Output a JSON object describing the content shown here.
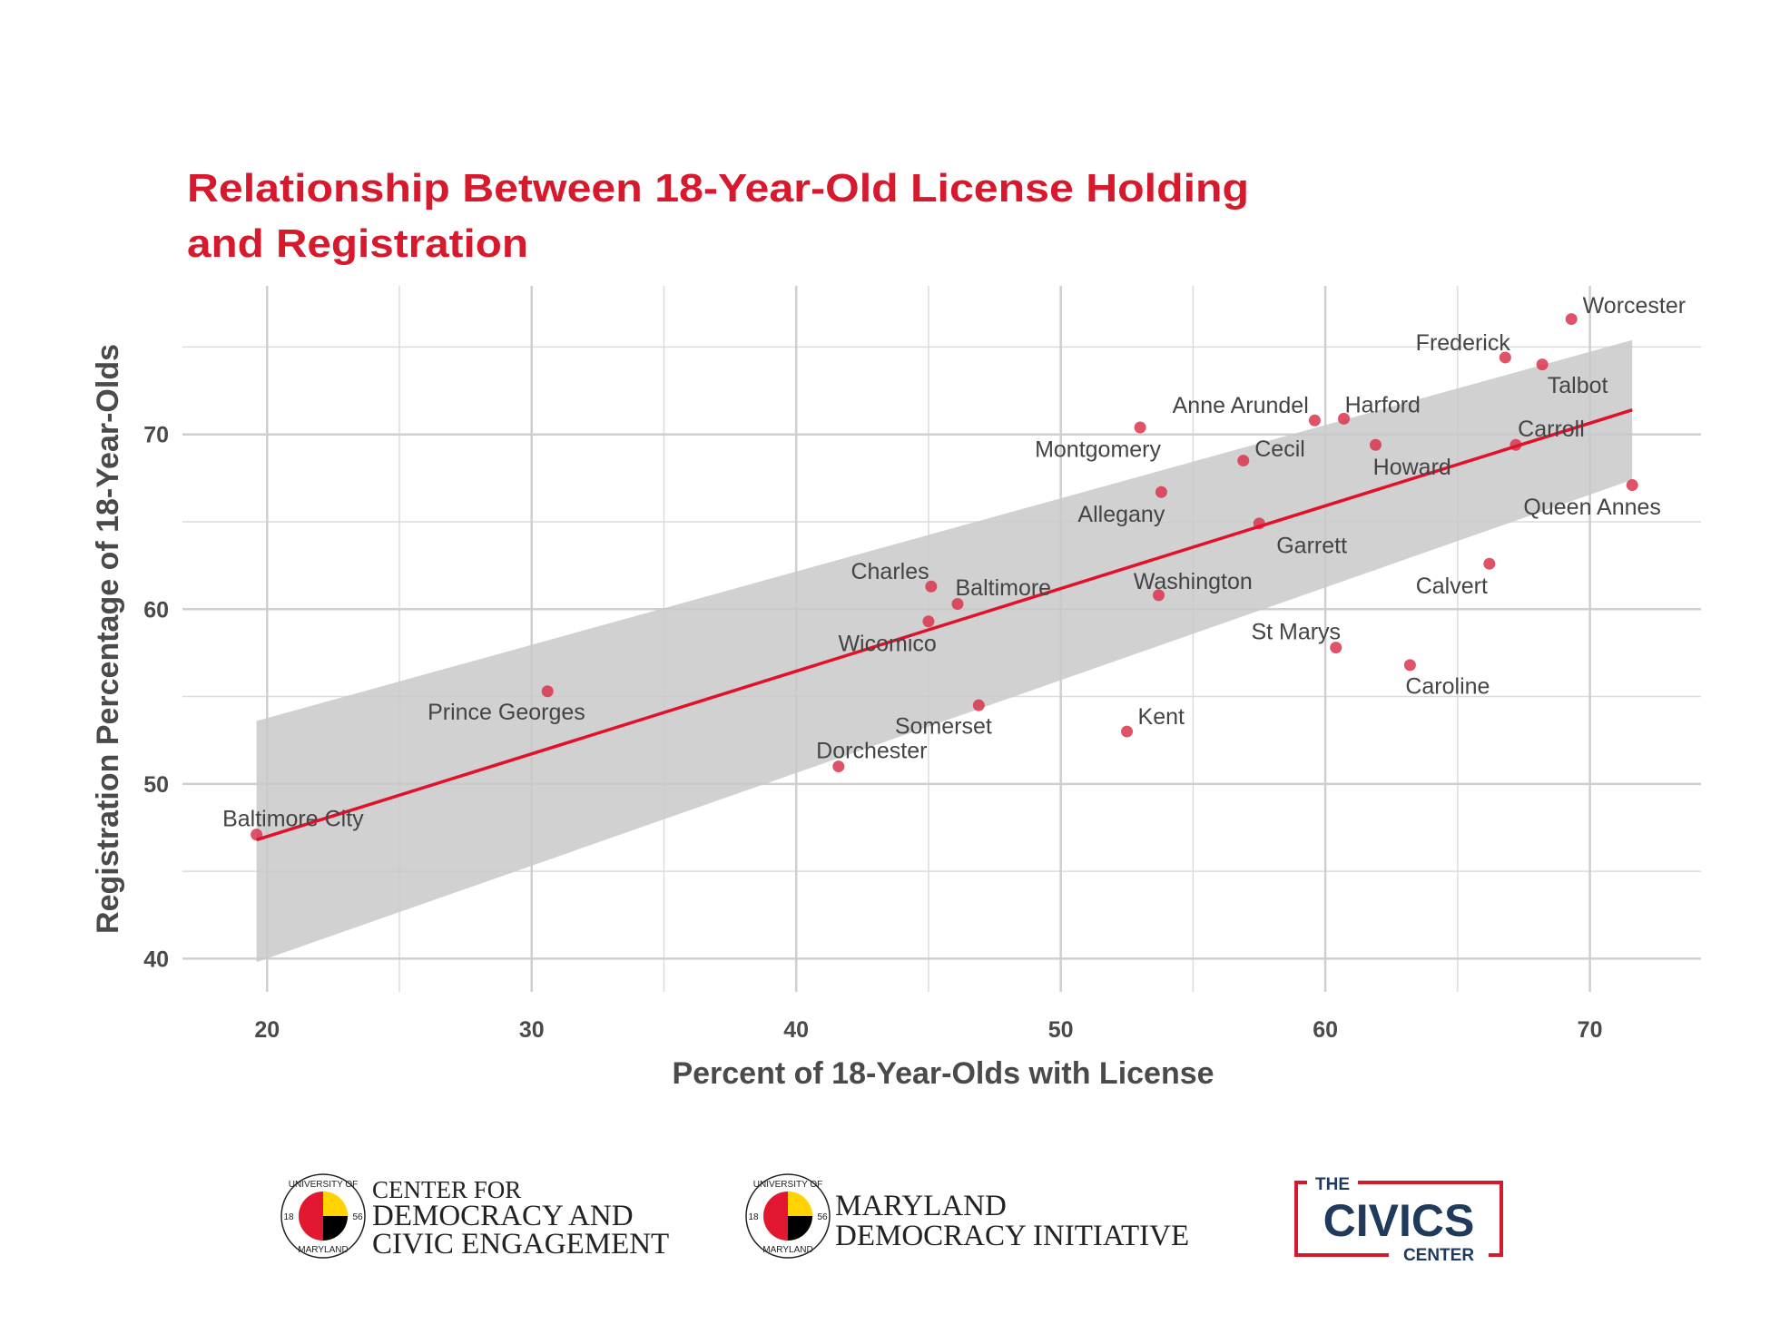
{
  "chart_data": {
    "type": "scatter",
    "title": [
      "Relationship Between 18-Year-Old License Holding",
      "and Registration"
    ],
    "x_label": "Percent of 18-Year-Olds with License",
    "y_label": "Registration Percentage of 18-Year-Olds",
    "labels": [
      "Baltimore City",
      "Prince Georges",
      "Dorchester",
      "Somerset",
      "Kent",
      "Wicomico",
      "Charles",
      "Baltimore",
      "Washington",
      "Montgomery",
      "Allegany",
      "Garrett",
      "Cecil",
      "Anne Arundel",
      "Harford",
      "Howard",
      "St Marys",
      "Caroline",
      "Calvert",
      "Frederick",
      "Talbot",
      "Carroll",
      "Worcester",
      "Queen Annes"
    ],
    "x": [
      19.6,
      30.6,
      41.6,
      46.9,
      52.5,
      45.0,
      45.1,
      46.1,
      53.7,
      53.0,
      53.8,
      57.5,
      56.9,
      59.6,
      60.7,
      61.9,
      60.4,
      63.2,
      66.2,
      66.8,
      68.2,
      67.2,
      69.3,
      71.6
    ],
    "y": [
      47.1,
      55.3,
      51.0,
      54.5,
      53.0,
      59.3,
      61.3,
      60.3,
      60.8,
      70.4,
      66.7,
      64.9,
      68.5,
      70.8,
      70.9,
      69.4,
      57.8,
      56.8,
      62.6,
      74.4,
      74.0,
      69.4,
      76.6,
      67.1
    ],
    "color": "#d9344e",
    "trend": {
      "x": [
        19.6,
        71.6
      ],
      "y": [
        46.8,
        71.4
      ],
      "lower": [
        39.8,
        67.4
      ],
      "upper": [
        53.6,
        75.4
      ],
      "color": "#e3102b",
      "band_color": "#c9c9c9"
    },
    "xlim": [
      16.8,
      74.2
    ],
    "ylim": [
      38.1,
      78.5
    ],
    "xticks": [
      20,
      30,
      40,
      50,
      60,
      70
    ],
    "yticks": [
      40,
      50,
      60,
      70
    ],
    "x_minor_ticks": [
      25,
      35,
      45,
      55,
      65
    ],
    "y_minor_ticks": [
      45,
      55,
      65,
      75
    ],
    "grid": true
  },
  "logos": {
    "seal": [
      "UNIVERSITY OF",
      "MARYLAND",
      "18",
      "56"
    ],
    "cdce": [
      "CENTER FOR",
      "DEMOCRACY AND",
      "CIVIC ENGAGEMENT"
    ],
    "mdi": [
      "MARYLAND",
      "DEMOCRACY INITIATIVE"
    ],
    "civics": [
      "THE",
      "CIVICS",
      "CENTER"
    ]
  }
}
